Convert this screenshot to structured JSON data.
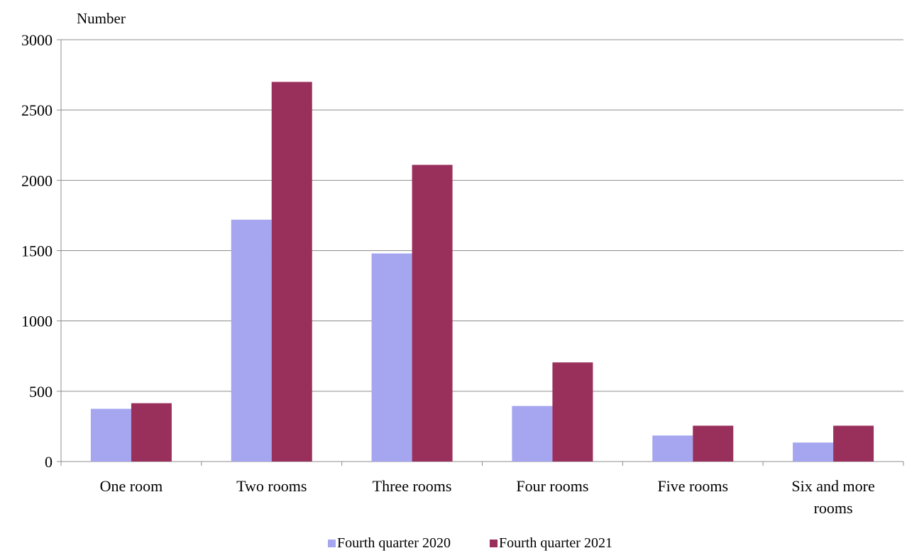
{
  "chart_data": {
    "type": "bar",
    "title": "",
    "unit_label": "Number",
    "xlabel": "",
    "ylabel": "",
    "categories": [
      "One room",
      "Two rooms",
      "Three rooms",
      "Four rooms",
      "Five rooms",
      "Six and more rooms"
    ],
    "category_lines": [
      [
        "One room"
      ],
      [
        "Two rooms"
      ],
      [
        "Three rooms"
      ],
      [
        "Four rooms"
      ],
      [
        "Five rooms"
      ],
      [
        "Six and more",
        "rooms"
      ]
    ],
    "series": [
      {
        "name": "Fourth quarter 2020",
        "color": "#a5a5f0",
        "values": [
          375,
          1720,
          1480,
          395,
          185,
          135
        ]
      },
      {
        "name": "Fourth quarter 2021",
        "color": "#99305c",
        "values": [
          415,
          2700,
          2110,
          705,
          255,
          255
        ]
      }
    ],
    "ylim": [
      0,
      3000
    ],
    "yticks": [
      0,
      500,
      1000,
      1500,
      2000,
      2500,
      3000
    ],
    "grid": true,
    "legend_position": "bottom"
  }
}
